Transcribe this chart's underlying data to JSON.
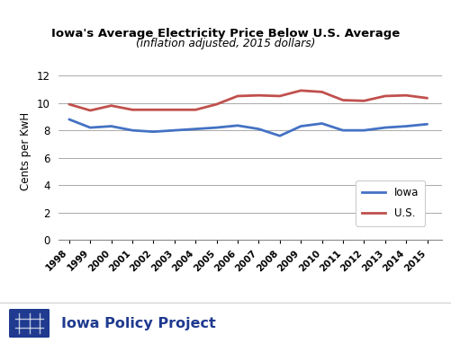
{
  "title": "Iowa's Average Electricity Price Below U.S. Average",
  "subtitle": "(inflation adjusted, 2015 dollars)",
  "ylabel": "Cents per KwH",
  "years": [
    1998,
    1999,
    2000,
    2001,
    2002,
    2003,
    2004,
    2005,
    2006,
    2007,
    2008,
    2009,
    2010,
    2011,
    2012,
    2013,
    2014,
    2015
  ],
  "iowa": [
    8.8,
    8.2,
    8.3,
    8.0,
    7.9,
    8.0,
    8.1,
    8.2,
    8.35,
    8.1,
    7.6,
    8.3,
    8.5,
    8.0,
    8.0,
    8.2,
    8.3,
    8.45
  ],
  "us": [
    9.9,
    9.45,
    9.8,
    9.5,
    9.5,
    9.5,
    9.5,
    9.9,
    10.5,
    10.55,
    10.5,
    10.9,
    10.8,
    10.2,
    10.15,
    10.5,
    10.55,
    10.35
  ],
  "iowa_color": "#4472C4",
  "us_color": "#C0504D",
  "ylim": [
    0,
    13
  ],
  "yticks": [
    0,
    2,
    4,
    6,
    8,
    10,
    12
  ],
  "background_color": "#FFFFFF",
  "grid_color": "#AAAAAA",
  "footer_text": "Iowa Policy Project",
  "footer_color": "#1F3A8F",
  "line_width": 2.0,
  "fig_width": 5.01,
  "fig_height": 3.82,
  "dpi": 100
}
